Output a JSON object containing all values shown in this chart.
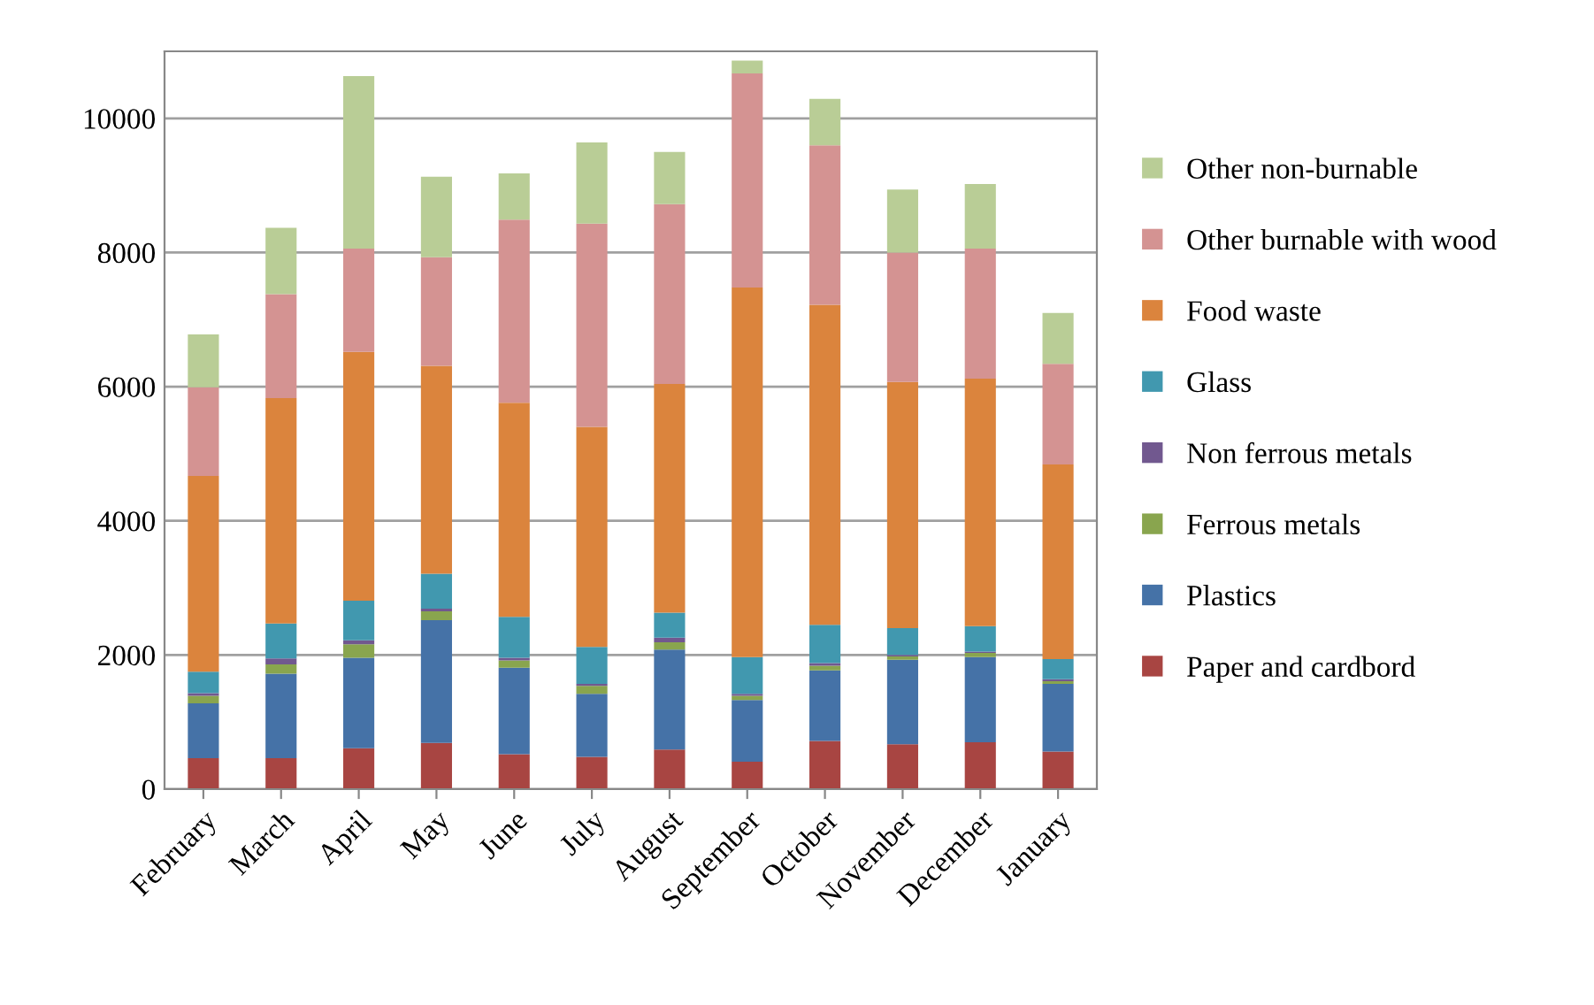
{
  "chart_data": {
    "type": "bar",
    "stacked": true,
    "categories": [
      "February",
      "March",
      "April",
      "May",
      "June",
      "July",
      "August",
      "September",
      "October",
      "November",
      "December",
      "January"
    ],
    "series": [
      {
        "name": "Paper and cardbord",
        "color": "#a84542",
        "values": [
          460,
          460,
          610,
          690,
          520,
          480,
          590,
          410,
          720,
          670,
          700,
          560
        ]
      },
      {
        "name": "Plastics",
        "color": "#4572a7",
        "values": [
          820,
          1260,
          1350,
          1830,
          1290,
          940,
          1490,
          920,
          1050,
          1260,
          1270,
          1010
        ]
      },
      {
        "name": "Ferrous metals",
        "color": "#89a54e",
        "values": [
          110,
          140,
          200,
          130,
          110,
          120,
          110,
          60,
          70,
          50,
          60,
          40
        ]
      },
      {
        "name": "Non ferrous metals",
        "color": "#71588f",
        "values": [
          40,
          90,
          60,
          40,
          40,
          30,
          70,
          30,
          40,
          20,
          20,
          30
        ]
      },
      {
        "name": "Glass",
        "color": "#4198af",
        "values": [
          320,
          520,
          590,
          520,
          610,
          550,
          370,
          550,
          570,
          400,
          380,
          300
        ]
      },
      {
        "name": "Food waste",
        "color": "#db843d",
        "values": [
          2920,
          3360,
          3710,
          3100,
          3190,
          3280,
          3410,
          5510,
          4770,
          3670,
          3690,
          2900
        ]
      },
      {
        "name": "Other burnable with wood",
        "color": "#d49392",
        "values": [
          1320,
          1550,
          1540,
          1620,
          2730,
          3030,
          2680,
          3190,
          2380,
          1930,
          1940,
          1500
        ]
      },
      {
        "name": "Other non-burnable",
        "color": "#b9cd96",
        "values": [
          790,
          990,
          2570,
          1200,
          690,
          1210,
          780,
          190,
          690,
          940,
          960,
          760
        ]
      }
    ],
    "ylim": [
      0,
      11000
    ],
    "yticks": [
      0,
      2000,
      4000,
      6000,
      8000,
      10000
    ],
    "grid": "y",
    "legend": "right"
  }
}
